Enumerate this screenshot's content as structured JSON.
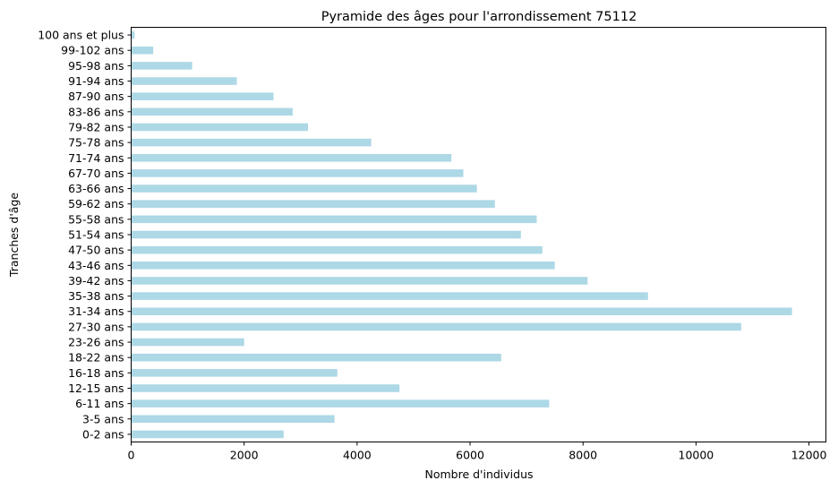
{
  "chart_data": {
    "type": "bar",
    "orientation": "horizontal",
    "title": "Pyramide des âges pour l'arrondissement 75112",
    "xlabel": "Nombre d'individus",
    "ylabel": "Tranches d'âge",
    "xlim": [
      0,
      12300
    ],
    "xticks": [
      0,
      2000,
      4000,
      6000,
      8000,
      10000,
      12000
    ],
    "grid": false,
    "bar_color": "#add8e6",
    "categories": [
      "0-2 ans",
      "3-5 ans",
      "6-11 ans",
      "12-15 ans",
      "16-18 ans",
      "18-22 ans",
      "23-26 ans",
      "27-30 ans",
      "31-34 ans",
      "35-38 ans",
      "39-42 ans",
      "43-46 ans",
      "47-50 ans",
      "51-54 ans",
      "55-58 ans",
      "59-62 ans",
      "63-66 ans",
      "67-70 ans",
      "71-74 ans",
      "75-78 ans",
      "79-82 ans",
      "83-86 ans",
      "87-90 ans",
      "91-94 ans",
      "95-98 ans",
      "99-102 ans",
      "100 ans et plus"
    ],
    "values": [
      2700,
      3600,
      7400,
      4750,
      3650,
      6550,
      2000,
      10800,
      11700,
      9150,
      8080,
      7500,
      7280,
      6900,
      7180,
      6440,
      6120,
      5880,
      5670,
      4250,
      3130,
      2860,
      2520,
      1870,
      1080,
      390,
      60
    ]
  }
}
